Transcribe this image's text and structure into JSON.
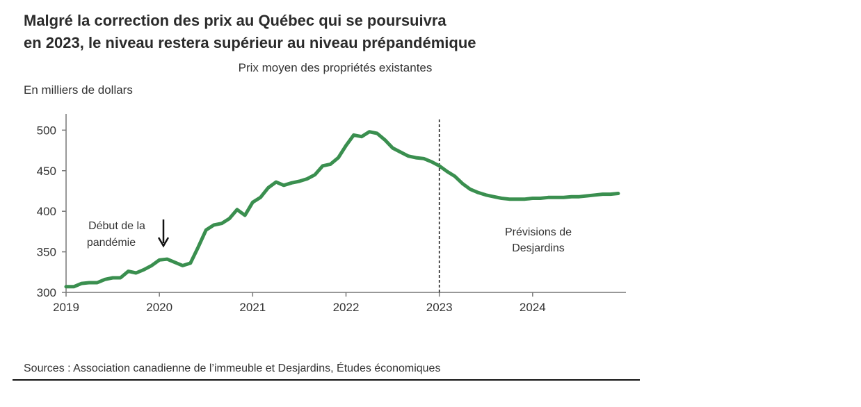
{
  "title_line1": "Malgré la correction des prix au Québec qui se poursuivra",
  "title_line2": "en 2023, le niveau restera supérieur au niveau prépandémique",
  "subtitle": "Prix moyen des propriétés existantes",
  "unit_label": "En milliers de dollars",
  "source": "Sources : Association canadienne de l’immeuble et Desjardins, Études économiques",
  "annotations": {
    "pandemic_line1": "Début de la",
    "pandemic_line2": "pandémie",
    "forecast_line1": "Prévisions de",
    "forecast_line2": "Desjardins"
  },
  "chart_data": {
    "type": "line",
    "title": "Prix moyen des propriétés existantes",
    "ylabel": "En milliers de dollars",
    "xlabel": "",
    "ylim": [
      300,
      520
    ],
    "xlim": [
      2019.0,
      2025.0
    ],
    "yticks": [
      300,
      350,
      400,
      450,
      500
    ],
    "xticks": [
      "2019",
      "2020",
      "2021",
      "2022",
      "2023",
      "2024"
    ],
    "forecast_start": 2023,
    "line_color": "#3a8f4f",
    "series": [
      {
        "x": [
          2019.0,
          2019.083,
          2019.167,
          2019.25,
          2019.333,
          2019.417,
          2019.5,
          2019.583,
          2019.667,
          2019.75,
          2019.833,
          2019.917,
          2020.0,
          2020.083,
          2020.167,
          2020.25,
          2020.333,
          2020.417,
          2020.5,
          2020.583,
          2020.667,
          2020.75,
          2020.833,
          2020.917,
          2021.0,
          2021.083,
          2021.167,
          2021.25,
          2021.333,
          2021.417,
          2021.5,
          2021.583,
          2021.667,
          2021.75,
          2021.833,
          2021.917,
          2022.0,
          2022.083,
          2022.167,
          2022.25,
          2022.333,
          2022.417,
          2022.5,
          2022.583,
          2022.667,
          2022.75,
          2022.833,
          2022.917,
          2023.0,
          2023.083,
          2023.167,
          2023.25,
          2023.333,
          2023.417,
          2023.5,
          2023.583,
          2023.667,
          2023.75,
          2023.833,
          2023.917,
          2024.0,
          2024.083,
          2024.167,
          2024.25,
          2024.333,
          2024.417,
          2024.5,
          2024.583,
          2024.667,
          2024.75,
          2024.833,
          2024.917
        ],
        "values": [
          307,
          307,
          311,
          312,
          312,
          316,
          318,
          318,
          326,
          324,
          328,
          333,
          340,
          341,
          337,
          333,
          336,
          356,
          377,
          383,
          385,
          391,
          402,
          395,
          411,
          417,
          429,
          436,
          432,
          435,
          437,
          440,
          445,
          456,
          458,
          466,
          481,
          494,
          492,
          498,
          496,
          488,
          478,
          473,
          468,
          466,
          465,
          461,
          456,
          449,
          443,
          434,
          427,
          423,
          420,
          418,
          416,
          415,
          415,
          415,
          416,
          416,
          417,
          417,
          417,
          418,
          418,
          419,
          420,
          421,
          421,
          422
        ]
      }
    ]
  }
}
